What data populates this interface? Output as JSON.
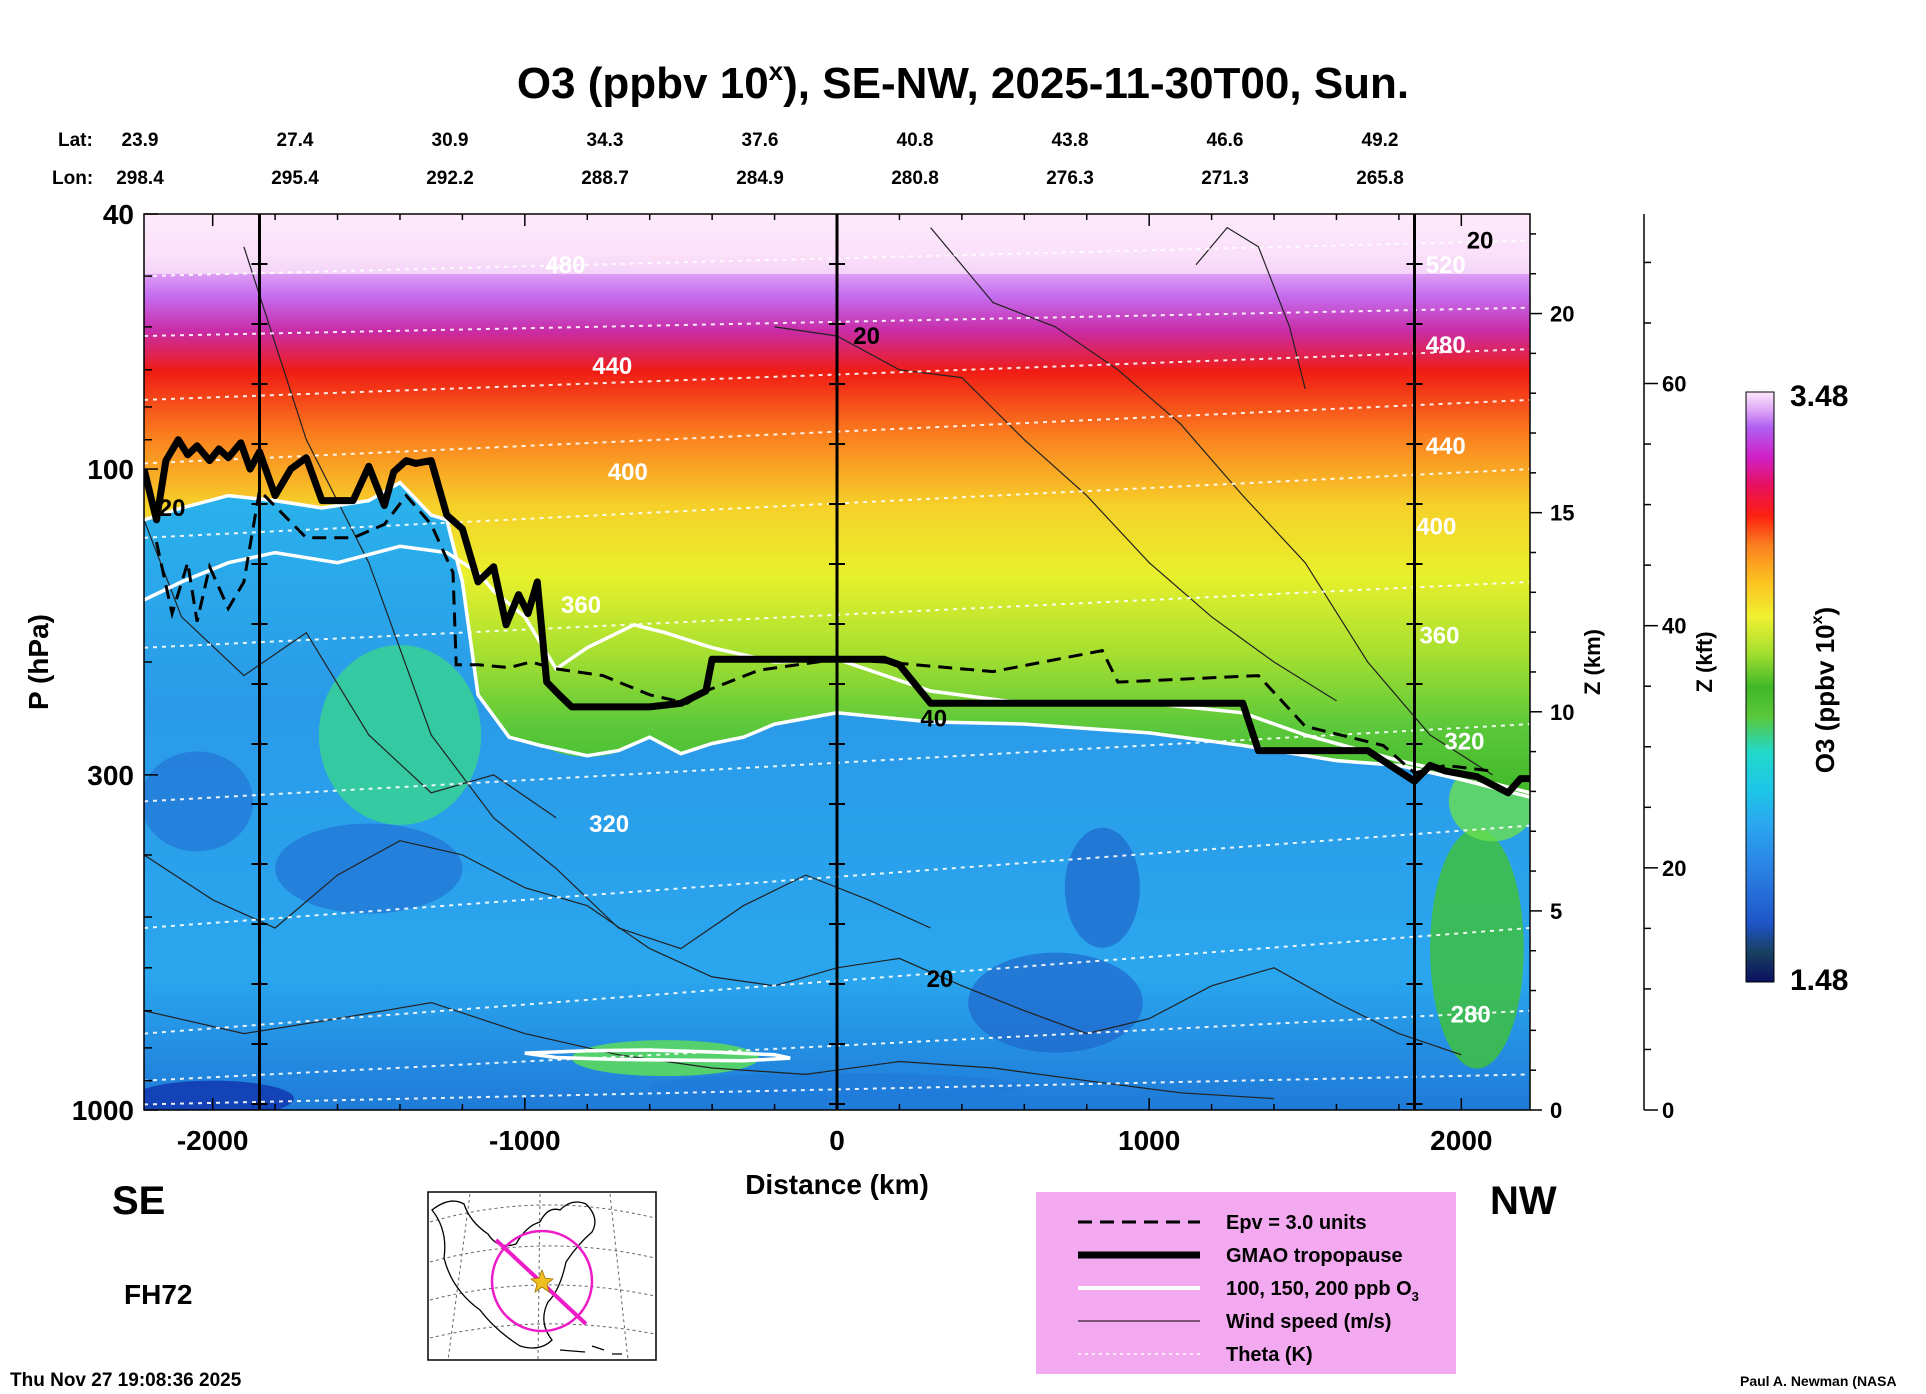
{
  "chart_data": {
    "type": "heatmap",
    "title_main": "O3 (ppbv 10",
    "title_sup": "x",
    "title_rest": "), SE-NW, 2025-11-30T00, Sun.",
    "lat_label": "Lat:",
    "lon_label": "Lon:",
    "lat_values": [
      "23.9",
      "27.4",
      "30.9",
      "34.3",
      "37.6",
      "40.8",
      "43.8",
      "46.6",
      "49.2"
    ],
    "lon_values": [
      "298.4",
      "295.4",
      "292.2",
      "288.7",
      "284.9",
      "280.8",
      "276.3",
      "271.3",
      "265.8"
    ],
    "xlabel": "Distance (km)",
    "xlim": [
      -2220,
      2220
    ],
    "x_ticks": [
      {
        "value": -2000,
        "label": "-2000"
      },
      {
        "value": -1000,
        "label": "-1000"
      },
      {
        "value": 0,
        "label": "0"
      },
      {
        "value": 1000,
        "label": "1000"
      },
      {
        "value": 2000,
        "label": "2000"
      }
    ],
    "ylabel": "P (hPa)",
    "ylim": [
      1000,
      40
    ],
    "y_ticks": [
      {
        "value": 40,
        "label": "40"
      },
      {
        "value": 100,
        "label": "100"
      },
      {
        "value": 300,
        "label": "300"
      },
      {
        "value": 1000,
        "label": "1000"
      }
    ],
    "z_km_label": "Z (km)",
    "z_km_ticks": [
      {
        "value": 0,
        "label": "0"
      },
      {
        "value": 5,
        "label": "5"
      },
      {
        "value": 10,
        "label": "10"
      },
      {
        "value": 15,
        "label": "15"
      },
      {
        "value": 20,
        "label": "20"
      }
    ],
    "z_kft_label": "Z (kft)",
    "z_kft_ticks": [
      {
        "value": 0,
        "label": "0"
      },
      {
        "value": 20,
        "label": "20"
      },
      {
        "value": 40,
        "label": "40"
      },
      {
        "value": 60,
        "label": "60"
      }
    ],
    "left_end": "SE",
    "right_end": "NW",
    "forecast_hour": "FH72",
    "timestamp": "Thu Nov 27 19:08:36 2025",
    "credit": "Paul A. Newman (NASA",
    "colorbar": {
      "label": "O3 (ppbv 10",
      "label_sup": "x",
      "label_end": ")",
      "max": "3.48",
      "min": "1.48"
    },
    "vertical_lines_km": [
      -1850,
      0,
      1850
    ],
    "tropopause": {
      "x": [
        -2220,
        -2180,
        -2150,
        -2110,
        -2080,
        -2050,
        -2010,
        -1980,
        -1950,
        -1910,
        -1880,
        -1850,
        -1800,
        -1750,
        -1700,
        -1650,
        -1600,
        -1550,
        -1500,
        -1450,
        -1420,
        -1380,
        -1350,
        -1300,
        -1250,
        -1200,
        -1150,
        -1100,
        -1060,
        -1020,
        -990,
        -960,
        -930,
        -890,
        -850,
        -800,
        -700,
        -600,
        -500,
        -420,
        -400,
        -200,
        0,
        150,
        200,
        300,
        400,
        1000,
        1300,
        1350,
        1500,
        1700,
        1800,
        1850,
        1900,
        1950,
        2050,
        2150,
        2190,
        2220
      ],
      "p": [
        100,
        120,
        97,
        90,
        95,
        92,
        97,
        93,
        96,
        91,
        100,
        94,
        110,
        100,
        96,
        112,
        112,
        112,
        99,
        114,
        101,
        97,
        98,
        97,
        118,
        124,
        150,
        142,
        175,
        157,
        168,
        150,
        215,
        225,
        235,
        235,
        235,
        235,
        232,
        222,
        198,
        198,
        198,
        198,
        202,
        232,
        232,
        232,
        232,
        275,
        275,
        275,
        296,
        307,
        290,
        296,
        302,
        320,
        304,
        304
      ]
    },
    "epv_3_0": {
      "x": [
        -2180,
        -2130,
        -2080,
        -2050,
        -2010,
        -1950,
        -1900,
        -1850,
        -1700,
        -1550,
        -1450,
        -1380,
        -1300,
        -1230,
        -1220,
        -1150,
        -1050,
        -980,
        -900,
        -750,
        -600,
        -480,
        -420,
        -250,
        0,
        150,
        300,
        500,
        850,
        900,
        1350,
        1500,
        1750,
        1850,
        1950,
        2100
      ],
      "p": [
        130,
        168,
        140,
        173,
        142,
        165,
        150,
        108,
        128,
        128,
        122,
        110,
        122,
        145,
        202,
        202,
        204,
        200,
        205,
        210,
        225,
        232,
        222,
        206,
        198,
        200,
        203,
        207,
        192,
        215,
        210,
        252,
        270,
        298,
        290,
        296
      ]
    },
    "o3_100_ppb": {
      "x": [
        -2220,
        -2100,
        -1950,
        -1800,
        -1600,
        -1400,
        -1250,
        -1150,
        -1100,
        -1000,
        -900,
        -800,
        -650,
        -550,
        -400,
        -200,
        0,
        300,
        600,
        1000,
        1300,
        1500,
        1800,
        2000,
        2220
      ],
      "p": [
        160,
        150,
        140,
        135,
        140,
        132,
        135,
        145,
        155,
        170,
        205,
        190,
        175,
        180,
        190,
        200,
        198,
        222,
        232,
        232,
        240,
        260,
        285,
        300,
        320
      ]
    },
    "o3_150_ppb": {
      "x": [
        -2220,
        -2100,
        -1950,
        -1800,
        -1650,
        -1500,
        -1400,
        -1300,
        -1250,
        -1200,
        -1150,
        -1050,
        -950,
        -800,
        -700,
        -600,
        -500,
        -400,
        -300,
        -200,
        0,
        300,
        600,
        1000,
        1300,
        1600,
        1800,
        2000,
        2220
      ],
      "p": [
        120,
        115,
        110,
        112,
        115,
        112,
        105,
        118,
        120,
        150,
        225,
        262,
        270,
        280,
        275,
        262,
        278,
        268,
        262,
        250,
        240,
        248,
        250,
        258,
        270,
        285,
        290,
        305,
        325
      ]
    },
    "wind_labels": [
      {
        "x": -2130,
        "p": 115,
        "text": "20"
      },
      {
        "x": 95,
        "p": 62,
        "text": "20"
      },
      {
        "x": 2060,
        "p": 44,
        "text": "20"
      },
      {
        "x": 310,
        "p": 245,
        "text": "40"
      },
      {
        "x": 330,
        "p": 625,
        "text": "20"
      }
    ],
    "theta": [
      {
        "label": "480",
        "x": -870,
        "p": 48
      },
      {
        "label": "440",
        "x": -720,
        "p": 69
      },
      {
        "label": "400",
        "x": -670,
        "p": 101
      },
      {
        "label": "360",
        "x": -820,
        "p": 163
      },
      {
        "label": "320",
        "x": -730,
        "p": 358
      },
      {
        "label": "520",
        "x": 1950,
        "p": 48
      },
      {
        "label": "480",
        "x": 1950,
        "p": 64
      },
      {
        "label": "440",
        "x": 1950,
        "p": 92
      },
      {
        "label": "400",
        "x": 1920,
        "p": 123
      },
      {
        "label": "360",
        "x": 1930,
        "p": 182
      },
      {
        "label": "320",
        "x": 2010,
        "p": 266
      },
      {
        "label": "280",
        "x": 2030,
        "p": 710
      }
    ],
    "legend": [
      {
        "style": "dashed",
        "label": "Epv = 3.0 units"
      },
      {
        "style": "thick",
        "label": "GMAO tropopause"
      },
      {
        "style": "white",
        "label": "100, 150, 200 ppb O"
      },
      {
        "style": "thin",
        "label": "Wind speed (m/s)"
      },
      {
        "style": "dotted",
        "label": "Theta (K)"
      }
    ],
    "legend_sub": "3"
  },
  "colors": {
    "panel_bg": "#f2a9f0",
    "o3_scale": [
      "#0a1060",
      "#1020a0",
      "#1f55c8",
      "#2a86e6",
      "#2aa8f0",
      "#1cc8e6",
      "#22d8c8",
      "#3ad88a",
      "#5ac83a",
      "#40b828",
      "#a8e030",
      "#f0f030",
      "#fcc020",
      "#fb8020",
      "#fc2010",
      "#e8105a",
      "#d020c8",
      "#b060f0",
      "#e0a8f8",
      "#fde8fb"
    ]
  }
}
